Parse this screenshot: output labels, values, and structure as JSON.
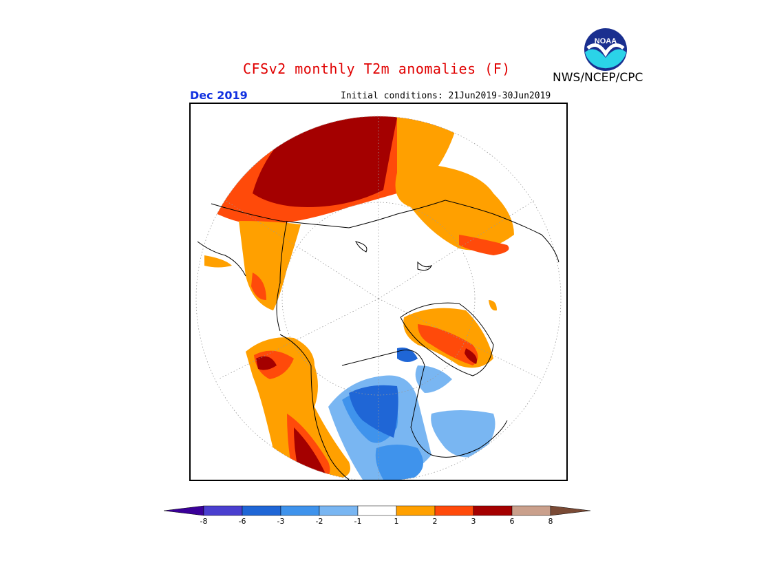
{
  "title": "CFSv2 monthly T2m anomalies (F)",
  "organization": "NWS/NCEP/CPC",
  "logo_text": "NOAA",
  "valid_month": "Dec 2019",
  "initial_conditions": "Initial conditions: 21Jun2019-30Jun2019",
  "projection": "north-polar-stereographic",
  "colorbar": {
    "bins": [
      {
        "color": "#3a0099",
        "label": "-8"
      },
      {
        "color": "#4a3fcf",
        "label": "-6"
      },
      {
        "color": "#1f66d6",
        "label": "-3"
      },
      {
        "color": "#3f93ec",
        "label": "-2"
      },
      {
        "color": "#79b6f2",
        "label": "-1"
      },
      {
        "color": "#ffffff",
        "label": "1"
      },
      {
        "color": "#ffa000",
        "label": "2"
      },
      {
        "color": "#ff4a0a",
        "label": "3"
      },
      {
        "color": "#a40000",
        "label": "6"
      },
      {
        "color": "#caa08c",
        "label": "8"
      },
      {
        "color": "#7a4a35",
        "label": ""
      }
    ]
  }
}
